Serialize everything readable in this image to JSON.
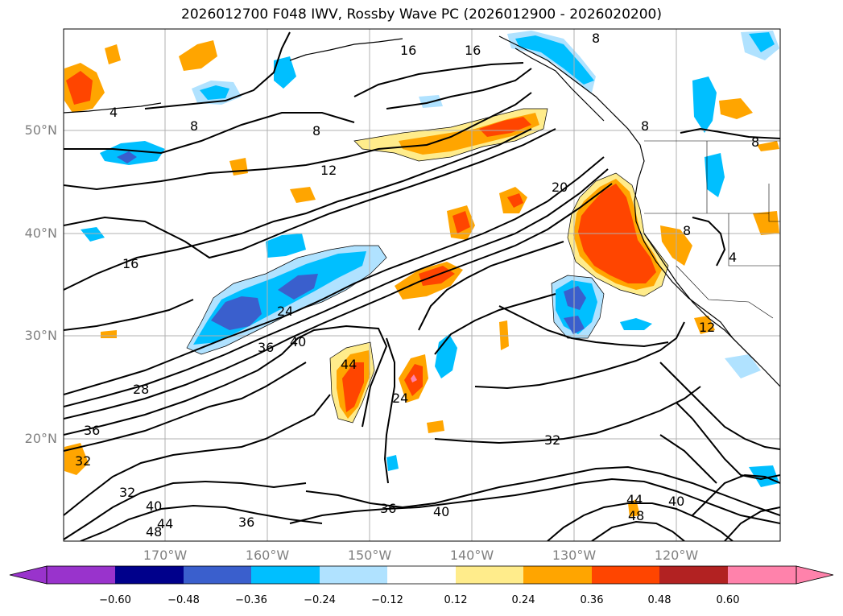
{
  "title": "2026012700 F048 IWV, Rossby Wave PC (2026012900 - 2026020200)",
  "lat_labels": [
    "50°N",
    "40°N",
    "30°N",
    "20°N"
  ],
  "lon_labels": [
    "170°W",
    "160°W",
    "150°W",
    "140°W",
    "130°W",
    "120°W"
  ],
  "colorbar": {
    "labels": [
      "−0.60",
      "−0.48",
      "−0.36",
      "−0.24",
      "−0.12",
      "0.12",
      "0.24",
      "0.36",
      "0.48",
      "0.60"
    ],
    "colors": [
      "#9933cc",
      "#00008b",
      "#3a5fcd",
      "#00bfff",
      "#b0e2ff",
      "#ffffff",
      "#ffec8b",
      "#ffa500",
      "#ff4500",
      "#b22222",
      "#ff82ab"
    ]
  },
  "contour_labels": [
    "16",
    "16",
    "8",
    "4",
    "8",
    "8",
    "8",
    "8",
    "12",
    "20",
    "16",
    "24",
    "36",
    "40",
    "44",
    "28",
    "36",
    "32",
    "24",
    "32",
    "32",
    "36",
    "40",
    "40",
    "44",
    "48",
    "44",
    "40",
    "48",
    "36",
    "4",
    "8",
    "12"
  ]
}
